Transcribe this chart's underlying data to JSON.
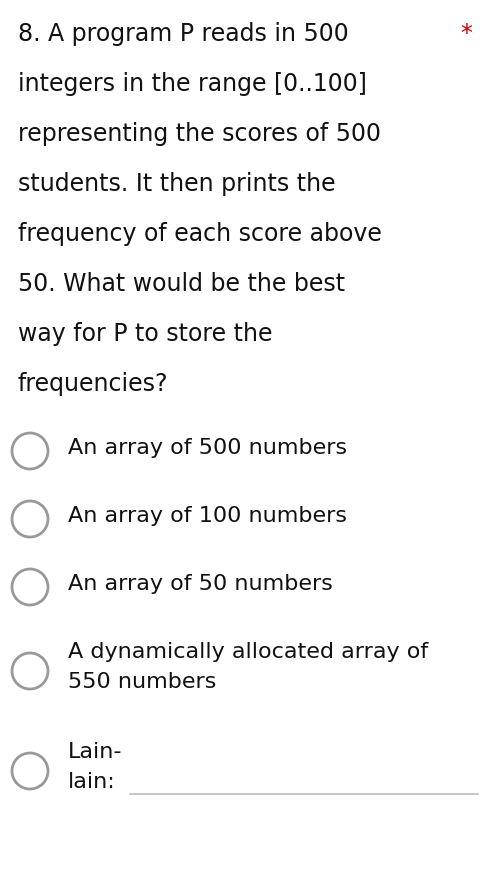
{
  "background_color": "#ffffff",
  "question_lines": [
    "8. A program P reads in 500",
    "integers in the range [0..100]",
    "representing the scores of 500",
    "students. It then prints the",
    "frequency of each score above",
    "50. What would be the best",
    "way for P to store the",
    "frequencies?"
  ],
  "required_star": "*",
  "required_star_color": "#cc0000",
  "options": [
    {
      "lines": [
        "An array of 500 numbers"
      ],
      "two_line": false
    },
    {
      "lines": [
        "An array of 100 numbers"
      ],
      "two_line": false
    },
    {
      "lines": [
        "An array of 50 numbers"
      ],
      "two_line": false
    },
    {
      "lines": [
        "A dynamically allocated array of",
        "550 numbers"
      ],
      "two_line": true
    },
    {
      "lines": [
        "Lain-",
        "lain:"
      ],
      "two_line": true,
      "last": true
    }
  ],
  "circle_color": "#999999",
  "text_color": "#111111",
  "font_size_question": 17,
  "font_size_option": 16,
  "line_color": "#bbbbbb",
  "fig_width": 4.88,
  "fig_height": 8.75,
  "dpi": 100
}
